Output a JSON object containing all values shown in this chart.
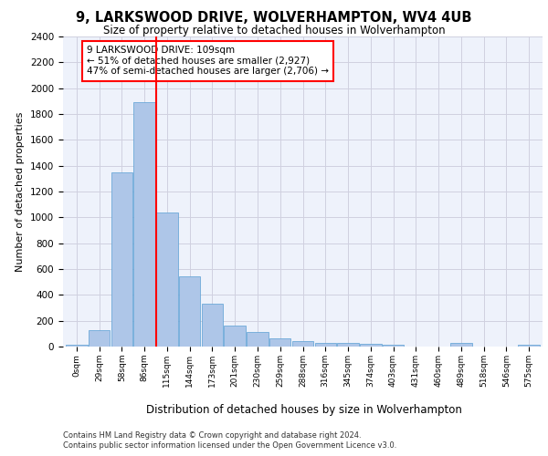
{
  "title1": "9, LARKSWOOD DRIVE, WOLVERHAMPTON, WV4 4UB",
  "title2": "Size of property relative to detached houses in Wolverhampton",
  "xlabel": "Distribution of detached houses by size in Wolverhampton",
  "ylabel": "Number of detached properties",
  "categories": [
    "0sqm",
    "29sqm",
    "58sqm",
    "86sqm",
    "115sqm",
    "144sqm",
    "173sqm",
    "201sqm",
    "230sqm",
    "259sqm",
    "288sqm",
    "316sqm",
    "345sqm",
    "374sqm",
    "403sqm",
    "431sqm",
    "460sqm",
    "489sqm",
    "518sqm",
    "546sqm",
    "575sqm"
  ],
  "values": [
    15,
    125,
    1345,
    1890,
    1040,
    545,
    335,
    165,
    110,
    65,
    40,
    30,
    25,
    20,
    15,
    0,
    0,
    25,
    0,
    0,
    15
  ],
  "bar_color": "#aec6e8",
  "bar_edge_color": "#5a9fd4",
  "grid_color": "#d0d0e0",
  "background_color": "#eef2fb",
  "ylim": [
    0,
    2400
  ],
  "yticks": [
    0,
    200,
    400,
    600,
    800,
    1000,
    1200,
    1400,
    1600,
    1800,
    2000,
    2200,
    2400
  ],
  "red_line_x": 3.5,
  "annotation_text": "9 LARKSWOOD DRIVE: 109sqm\n← 51% of detached houses are smaller (2,927)\n47% of semi-detached houses are larger (2,706) →",
  "footer1": "Contains HM Land Registry data © Crown copyright and database right 2024.",
  "footer2": "Contains public sector information licensed under the Open Government Licence v3.0."
}
